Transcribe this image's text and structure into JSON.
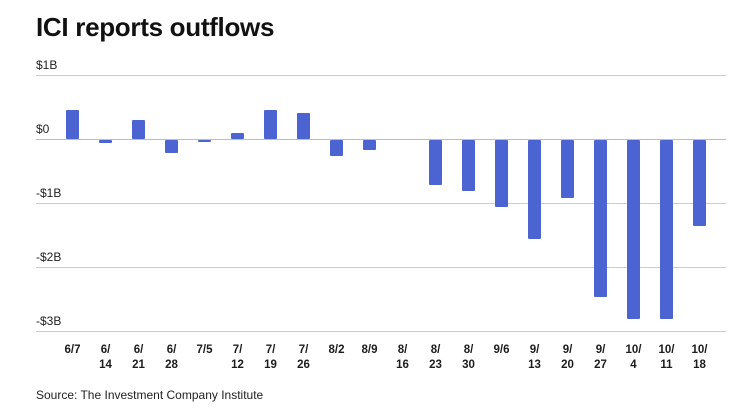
{
  "chart_data": {
    "type": "bar",
    "title": "ICI reports outflows",
    "source": "Source: The Investment Company Institute",
    "categories": [
      "6/7",
      "6/14",
      "6/21",
      "6/28",
      "7/5",
      "7/12",
      "7/19",
      "7/26",
      "8/2",
      "8/9",
      "8/16",
      "8/23",
      "8/30",
      "9/6",
      "9/13",
      "9/20",
      "9/27",
      "10/4",
      "10/11",
      "10/18"
    ],
    "values": [
      0.45,
      -0.05,
      0.3,
      -0.2,
      -0.03,
      0.1,
      0.45,
      0.4,
      -0.25,
      -0.15,
      0,
      -0.7,
      -0.8,
      -1.05,
      -1.55,
      -0.9,
      -2.45,
      -2.8,
      -2.8,
      -1.35
    ],
    "units": "billions_usd",
    "ylim": [
      -3,
      1
    ],
    "yticks": [
      {
        "value": 1,
        "label": "$1B"
      },
      {
        "value": 0,
        "label": "$0"
      },
      {
        "value": -1,
        "label": "-$1B"
      },
      {
        "value": -2,
        "label": "-$2B"
      },
      {
        "value": -3,
        "label": "-$3B"
      }
    ],
    "bar_color": "#4c63d2",
    "grid": true,
    "legend": "none"
  }
}
